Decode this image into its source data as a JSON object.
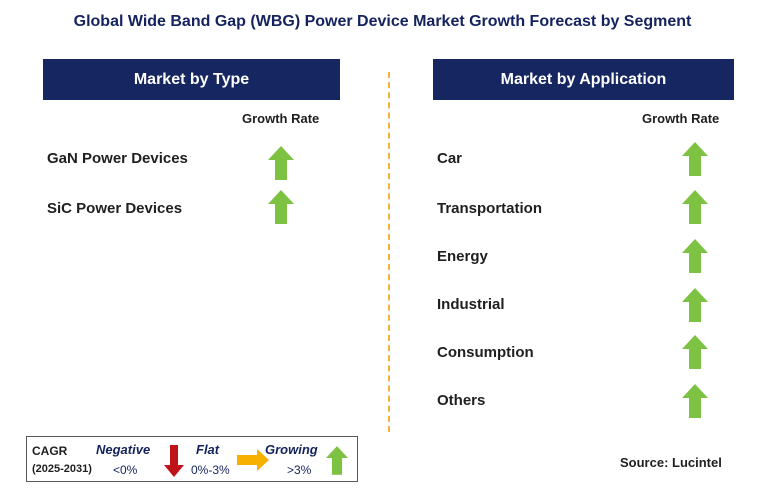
{
  "title": "Global Wide Band Gap (WBG) Power Device Market Growth Forecast by Segment",
  "left_panel": {
    "header": "Market by Type",
    "column_label": "Growth Rate",
    "segments": [
      {
        "label": "GaN Power Devices",
        "trend": "growing"
      },
      {
        "label": "SiC Power Devices",
        "trend": "growing"
      }
    ]
  },
  "right_panel": {
    "header": "Market by Application",
    "column_label": "Growth Rate",
    "segments": [
      {
        "label": "Car",
        "trend": "growing"
      },
      {
        "label": "Transportation",
        "trend": "growing"
      },
      {
        "label": "Energy",
        "trend": "growing"
      },
      {
        "label": "Industrial",
        "trend": "growing"
      },
      {
        "label": "Consumption",
        "trend": "growing"
      },
      {
        "label": "Others",
        "trend": "growing"
      }
    ]
  },
  "legend": {
    "cagr_label": "CAGR",
    "period": "(2025-2031)",
    "negative_label": "Negative",
    "negative_value": "<0%",
    "flat_label": "Flat",
    "flat_value": "0%-3%",
    "growing_label": "Growing",
    "growing_value": ">3%"
  },
  "source": "Source: Lucintel",
  "colors": {
    "header_bg": "#152660",
    "growing_arrow": "#7dc242",
    "negative_arrow": "#c0141a",
    "flat_arrow": "#f7b000",
    "divider": "#f2b436"
  }
}
